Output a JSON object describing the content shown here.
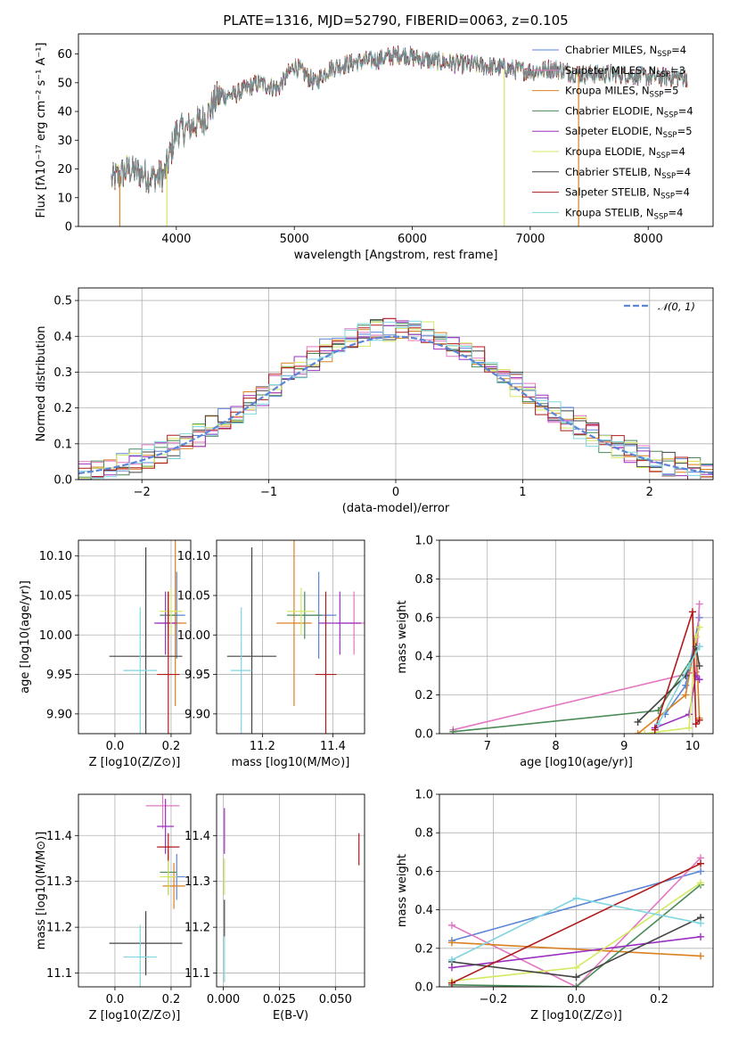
{
  "chart_data": [
    {
      "type": "line",
      "title": "PLATE=1316, MJD=52790, FIBERID=0063, z=0.105",
      "xlabel": "wavelength [Angstrom, rest frame]",
      "ylabel": "Flux [fλ10⁻¹⁷ erg cm⁻² s⁻¹ A⁻¹]",
      "xlim": [
        3170,
        8550
      ],
      "ylim": [
        0,
        67
      ],
      "xticks": [
        4000,
        5000,
        6000,
        7000,
        8000
      ],
      "yticks": [
        0,
        10,
        20,
        30,
        40,
        50,
        60
      ],
      "legend_position": "upper right",
      "spectrum_anchors": {
        "wavelength": [
          3450,
          3600,
          3800,
          3900,
          4000,
          4100,
          4250,
          4350,
          4500,
          4700,
          4862,
          5000,
          5175,
          5300,
          5500,
          5700,
          5900,
          6100,
          6300,
          6563,
          6800,
          7000,
          7200,
          7400,
          7600,
          7800,
          8000,
          8200,
          8330
        ],
        "flux": [
          16,
          20,
          17,
          18,
          33,
          34,
          38,
          45,
          46,
          50,
          48,
          56,
          50,
          55,
          57,
          58,
          60,
          58,
          57,
          56,
          55,
          54,
          55,
          53,
          53,
          53,
          52,
          52,
          52
        ]
      },
      "series": [
        {
          "name": "Chabrier MILES, N_SSP=4",
          "color": "#5b85d6"
        },
        {
          "name": "Salpeter MILES, N_SSP=3",
          "color": "#e377c2"
        },
        {
          "name": "Kroupa MILES, N_SSP=5",
          "color": "#d98021"
        },
        {
          "name": "Chabrier ELODIE, N_SSP=4",
          "color": "#4a8a57"
        },
        {
          "name": "Salpeter ELODIE, N_SSP=5",
          "color": "#9b30c0"
        },
        {
          "name": "Kroupa ELODIE, N_SSP=4",
          "color": "#d4e860"
        },
        {
          "name": "Chabrier STELIB, N_SSP=4",
          "color": "#444444"
        },
        {
          "name": "Salpeter STELIB, N_SSP=4",
          "color": "#b01a1a"
        },
        {
          "name": "Kroupa STELIB, N_SSP=4",
          "color": "#7fd6e0"
        }
      ],
      "legend": {
        "entries": [
          {
            "base": "Chabrier MILES, N",
            "sub": "SSP",
            "tail": "=4"
          },
          {
            "base": "Salpeter MILES, N",
            "sub": "SSP",
            "tail": "=3"
          },
          {
            "base": "Kroupa MILES, N",
            "sub": "SSP",
            "tail": "=5"
          },
          {
            "base": "Chabrier ELODIE, N",
            "sub": "SSP",
            "tail": "=4"
          },
          {
            "base": "Salpeter ELODIE, N",
            "sub": "SSP",
            "tail": "=5"
          },
          {
            "base": "Kroupa ELODIE, N",
            "sub": "SSP",
            "tail": "=4"
          },
          {
            "base": "Chabrier STELIB, N",
            "sub": "SSP",
            "tail": "=4"
          },
          {
            "base": "Salpeter STELIB, N",
            "sub": "SSP",
            "tail": "=4"
          },
          {
            "base": "Kroupa STELIB, N",
            "sub": "SSP",
            "tail": "=4"
          }
        ]
      },
      "vertical_drops": [
        {
          "x": 3520,
          "color": "#d98021"
        },
        {
          "x": 3920,
          "color": "#d4e860"
        },
        {
          "x": 6780,
          "color": "#d4e860"
        },
        {
          "x": 7410,
          "color": "#d98021"
        }
      ]
    },
    {
      "type": "histogram",
      "xlabel": "(data-model)/error",
      "ylabel": "Normed distribution",
      "xlim": [
        -2.5,
        2.5
      ],
      "ylim": [
        0,
        0.535
      ],
      "xticks": [
        -2,
        -1,
        0,
        1,
        2
      ],
      "yticks": [
        0.0,
        0.1,
        0.2,
        0.3,
        0.4,
        0.5
      ],
      "grid": true,
      "legend_position": "upper right",
      "reference": {
        "label": "𝒩(0, 1)",
        "color": "#5b85d6",
        "mean": 0,
        "sigma": 1
      }
    },
    {
      "type": "scatter",
      "name": "age-vs-metallicity",
      "xlabel": "Z [log10(Z/Z⊙)]",
      "ylabel": "age [log10(age/yr)]",
      "xlim": [
        -0.13,
        0.27
      ],
      "ylim": [
        9.875,
        10.12
      ],
      "xticks": [
        0.0,
        0.2
      ],
      "yticks": [
        9.9,
        9.95,
        10.0,
        10.05,
        10.1
      ],
      "grid": true,
      "points": [
        {
          "x": 0.22,
          "y": 10.025,
          "xerr": 0.03,
          "yerr": 0.055,
          "color": "#5b85d6"
        },
        {
          "x": 0.19,
          "y": 10.015,
          "xerr": 0.04,
          "yerr": 0.04,
          "color": "#e377c2"
        },
        {
          "x": 0.215,
          "y": 10.015,
          "xerr": 0.04,
          "yerr": 0.105,
          "color": "#d98021"
        },
        {
          "x": 0.19,
          "y": 10.025,
          "xerr": 0.03,
          "yerr": 0.03,
          "color": "#4a8a57"
        },
        {
          "x": 0.18,
          "y": 10.015,
          "xerr": 0.04,
          "yerr": 0.04,
          "color": "#9b30c0"
        },
        {
          "x": 0.2,
          "y": 10.03,
          "xerr": 0.04,
          "yerr": 0.03,
          "color": "#d4e860"
        },
        {
          "x": 0.11,
          "y": 9.973,
          "xerr": 0.13,
          "yerr": 0.138,
          "color": "#444444"
        },
        {
          "x": 0.19,
          "y": 9.95,
          "xerr": 0.04,
          "yerr": 0.105,
          "color": "#b01a1a"
        },
        {
          "x": 0.09,
          "y": 9.955,
          "xerr": 0.06,
          "yerr": 0.08,
          "color": "#7fd6e0"
        }
      ]
    },
    {
      "type": "scatter",
      "name": "age-vs-mass",
      "xlabel": "mass [log10(M/M⊙)]",
      "ylabel": "",
      "xlim": [
        11.07,
        11.49
      ],
      "ylim": [
        9.875,
        10.12
      ],
      "xticks": [
        11.2,
        11.4
      ],
      "yticks": [
        9.9,
        9.95,
        10.0,
        10.05,
        10.1
      ],
      "grid": true,
      "points": [
        {
          "x": 11.36,
          "y": 10.025,
          "xerr": 0.05,
          "yerr": 0.055,
          "color": "#5b85d6"
        },
        {
          "x": 11.46,
          "y": 10.015,
          "xerr": 0.05,
          "yerr": 0.04,
          "color": "#e377c2"
        },
        {
          "x": 11.29,
          "y": 10.015,
          "xerr": 0.05,
          "yerr": 0.105,
          "color": "#d98021"
        },
        {
          "x": 11.32,
          "y": 10.025,
          "xerr": 0.05,
          "yerr": 0.03,
          "color": "#4a8a57"
        },
        {
          "x": 11.42,
          "y": 10.015,
          "xerr": 0.06,
          "yerr": 0.04,
          "color": "#9b30c0"
        },
        {
          "x": 11.31,
          "y": 10.03,
          "xerr": 0.04,
          "yerr": 0.03,
          "color": "#d4e860"
        },
        {
          "x": 11.17,
          "y": 9.973,
          "xerr": 0.07,
          "yerr": 0.138,
          "color": "#444444"
        },
        {
          "x": 11.38,
          "y": 9.95,
          "xerr": 0.03,
          "yerr": 0.105,
          "color": "#b01a1a"
        },
        {
          "x": 11.14,
          "y": 9.955,
          "xerr": 0.03,
          "yerr": 0.08,
          "color": "#7fd6e0"
        }
      ]
    },
    {
      "type": "line",
      "name": "mass-weight-vs-age",
      "xlabel": "age  [log10(age/yr)]",
      "ylabel": "mass weight",
      "xlim": [
        6.3,
        10.3
      ],
      "ylim": [
        0,
        1
      ],
      "xticks": [
        7,
        8,
        9,
        10
      ],
      "yticks": [
        0.0,
        0.2,
        0.4,
        0.6,
        0.8,
        1.0
      ],
      "grid": true,
      "series": [
        {
          "color": "#5b85d6",
          "x": [
            9.6,
            9.9,
            10.1
          ],
          "y": [
            0.1,
            0.25,
            0.6
          ]
        },
        {
          "color": "#e377c2",
          "x": [
            6.5,
            10.05,
            10.1
          ],
          "y": [
            0.02,
            0.32,
            0.67
          ]
        },
        {
          "color": "#d98021",
          "x": [
            9.2,
            9.9,
            10.05,
            10.1
          ],
          "y": [
            0.0,
            0.2,
            0.5,
            0.08
          ]
        },
        {
          "color": "#4a8a57",
          "x": [
            6.5,
            9.5,
            10.1
          ],
          "y": [
            0.01,
            0.12,
            0.45
          ]
        },
        {
          "color": "#9b30c0",
          "x": [
            9.45,
            9.95,
            10.05,
            10.1
          ],
          "y": [
            0.03,
            0.1,
            0.3,
            0.28
          ]
        },
        {
          "color": "#d4e860",
          "x": [
            9.3,
            9.95,
            10.05,
            10.1
          ],
          "y": [
            0.0,
            0.03,
            0.5,
            0.55
          ]
        },
        {
          "color": "#444444",
          "x": [
            9.2,
            9.9,
            10.05,
            10.1
          ],
          "y": [
            0.06,
            0.3,
            0.45,
            0.35
          ]
        },
        {
          "color": "#b01a1a",
          "x": [
            9.45,
            10.0,
            10.05,
            10.1
          ],
          "y": [
            0.02,
            0.63,
            0.05,
            0.07
          ]
        },
        {
          "color": "#7fd6e0",
          "x": [
            9.5,
            9.95,
            10.1
          ],
          "y": [
            0.05,
            0.35,
            0.45
          ]
        }
      ]
    },
    {
      "type": "scatter",
      "name": "mass-vs-metallicity",
      "xlabel": "Z [log10(Z/Z⊙)]",
      "ylabel": "mass [log10(M/M⊙)]",
      "xlim": [
        -0.13,
        0.27
      ],
      "ylim": [
        11.07,
        11.49
      ],
      "xticks": [
        0.0,
        0.2
      ],
      "yticks": [
        11.1,
        11.2,
        11.3,
        11.4
      ],
      "grid": true,
      "points": [
        {
          "x": 0.22,
          "y": 11.31,
          "xerr": 0.03,
          "yerr": 0.05,
          "color": "#5b85d6"
        },
        {
          "x": 0.17,
          "y": 11.465,
          "xerr": 0.06,
          "yerr": 0.05,
          "color": "#e377c2"
        },
        {
          "x": 0.21,
          "y": 11.29,
          "xerr": 0.04,
          "yerr": 0.05,
          "color": "#d98021"
        },
        {
          "x": 0.19,
          "y": 11.32,
          "xerr": 0.03,
          "yerr": 0.05,
          "color": "#4a8a57"
        },
        {
          "x": 0.18,
          "y": 11.42,
          "xerr": 0.03,
          "yerr": 0.06,
          "color": "#9b30c0"
        },
        {
          "x": 0.19,
          "y": 11.31,
          "xerr": 0.03,
          "yerr": 0.04,
          "color": "#d4e860"
        },
        {
          "x": 0.11,
          "y": 11.165,
          "xerr": 0.13,
          "yerr": 0.07,
          "color": "#444444"
        },
        {
          "x": 0.19,
          "y": 11.375,
          "xerr": 0.04,
          "yerr": 0.03,
          "color": "#b01a1a"
        },
        {
          "x": 0.09,
          "y": 11.135,
          "xerr": 0.06,
          "yerr": 0.07,
          "color": "#7fd6e0"
        }
      ]
    },
    {
      "type": "scatter",
      "name": "mass-vs-extinction",
      "xlabel": "E(B-V)",
      "ylabel": "",
      "xlim": [
        -0.003,
        0.063
      ],
      "ylim": [
        11.07,
        11.49
      ],
      "xticks": [
        0.0,
        0.025,
        0.05
      ],
      "yticks": [
        11.1,
        11.2,
        11.3,
        11.4
      ],
      "grid": true,
      "points": [
        {
          "x": 0.0005,
          "y": 11.41,
          "xerr": 0,
          "yerr": 0.05,
          "color": "#9b30c0"
        },
        {
          "x": 0.0005,
          "y": 11.31,
          "xerr": 0,
          "yerr": 0.04,
          "color": "#d4e860"
        },
        {
          "x": 0.0005,
          "y": 11.22,
          "xerr": 0,
          "yerr": 0.04,
          "color": "#444444"
        },
        {
          "x": 0.0005,
          "y": 11.13,
          "xerr": 0,
          "yerr": 0.05,
          "color": "#7fd6e0"
        },
        {
          "x": 0.0605,
          "y": 11.37,
          "xerr": 0,
          "yerr": 0.035,
          "color": "#b01a1a"
        }
      ]
    },
    {
      "type": "line",
      "name": "mass-weight-vs-metallicity",
      "xlabel": "Z [log10(Z/Z⊙)]",
      "ylabel": "mass weight",
      "xlim": [
        -0.33,
        0.33
      ],
      "ylim": [
        0,
        1
      ],
      "xticks": [
        -0.2,
        0.0,
        0.2
      ],
      "yticks": [
        0.0,
        0.2,
        0.4,
        0.6,
        0.8,
        1.0
      ],
      "grid": true,
      "series": [
        {
          "color": "#5b85d6",
          "x": [
            -0.3,
            0.3
          ],
          "y": [
            0.24,
            0.6
          ]
        },
        {
          "color": "#e377c2",
          "x": [
            -0.3,
            0.0,
            0.3
          ],
          "y": [
            0.32,
            0.0,
            0.67
          ]
        },
        {
          "color": "#d98021",
          "x": [
            -0.3,
            0.3
          ],
          "y": [
            0.23,
            0.16
          ]
        },
        {
          "color": "#4a8a57",
          "x": [
            -0.3,
            0.0,
            0.3
          ],
          "y": [
            0.01,
            0.0,
            0.53
          ]
        },
        {
          "color": "#9b30c0",
          "x": [
            -0.3,
            0.3
          ],
          "y": [
            0.1,
            0.26
          ]
        },
        {
          "color": "#d4e860",
          "x": [
            -0.3,
            0.0,
            0.3
          ],
          "y": [
            0.03,
            0.1,
            0.54
          ]
        },
        {
          "color": "#444444",
          "x": [
            -0.3,
            0.0,
            0.3
          ],
          "y": [
            0.13,
            0.05,
            0.36
          ]
        },
        {
          "color": "#b01a1a",
          "x": [
            -0.3,
            0.3
          ],
          "y": [
            0.02,
            0.64
          ]
        },
        {
          "color": "#7fd6e0",
          "x": [
            -0.3,
            0.0,
            0.3
          ],
          "y": [
            0.14,
            0.46,
            0.33
          ]
        }
      ]
    }
  ]
}
